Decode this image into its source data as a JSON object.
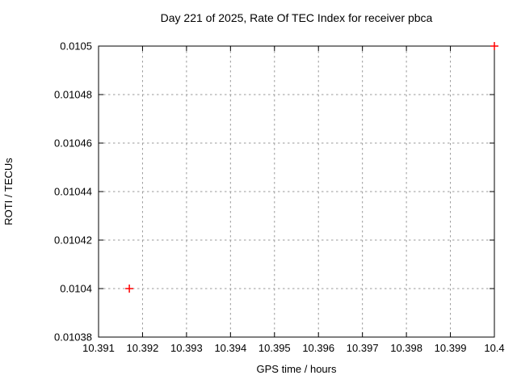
{
  "chart_data": {
    "type": "scatter",
    "title": "Day 221 of 2025, Rate Of TEC Index for receiver pbca",
    "xlabel": "GPS time / hours",
    "ylabel": "ROTI / TECUs",
    "xlim": [
      10.391,
      10.4
    ],
    "ylim": [
      0.01038,
      0.0105
    ],
    "grid": true,
    "legend_position": "none",
    "x_ticks": [
      {
        "v": 10.391,
        "label": "10.391"
      },
      {
        "v": 10.392,
        "label": "10.392"
      },
      {
        "v": 10.393,
        "label": "10.393"
      },
      {
        "v": 10.394,
        "label": "10.394"
      },
      {
        "v": 10.395,
        "label": "10.395"
      },
      {
        "v": 10.396,
        "label": "10.396"
      },
      {
        "v": 10.397,
        "label": "10.397"
      },
      {
        "v": 10.398,
        "label": "10.398"
      },
      {
        "v": 10.399,
        "label": "10.399"
      },
      {
        "v": 10.4,
        "label": "10.4"
      }
    ],
    "y_ticks": [
      {
        "v": 0.01038,
        "label": "0.01038"
      },
      {
        "v": 0.0104,
        "label": "0.0104"
      },
      {
        "v": 0.01042,
        "label": "0.01042"
      },
      {
        "v": 0.01044,
        "label": "0.01044"
      },
      {
        "v": 0.01046,
        "label": "0.01046"
      },
      {
        "v": 0.01048,
        "label": "0.01048"
      },
      {
        "v": 0.0105,
        "label": "0.0105"
      }
    ],
    "series": [
      {
        "name": "ROTI",
        "marker": "plus",
        "color": "#ff0000",
        "points": [
          [
            10.3917,
            0.0104
          ],
          [
            10.4,
            0.0105
          ]
        ]
      }
    ]
  },
  "style": {
    "grid_color": "#9a9a9a",
    "axis_color": "#000000",
    "text_color": "#000000",
    "background": "#ffffff"
  }
}
